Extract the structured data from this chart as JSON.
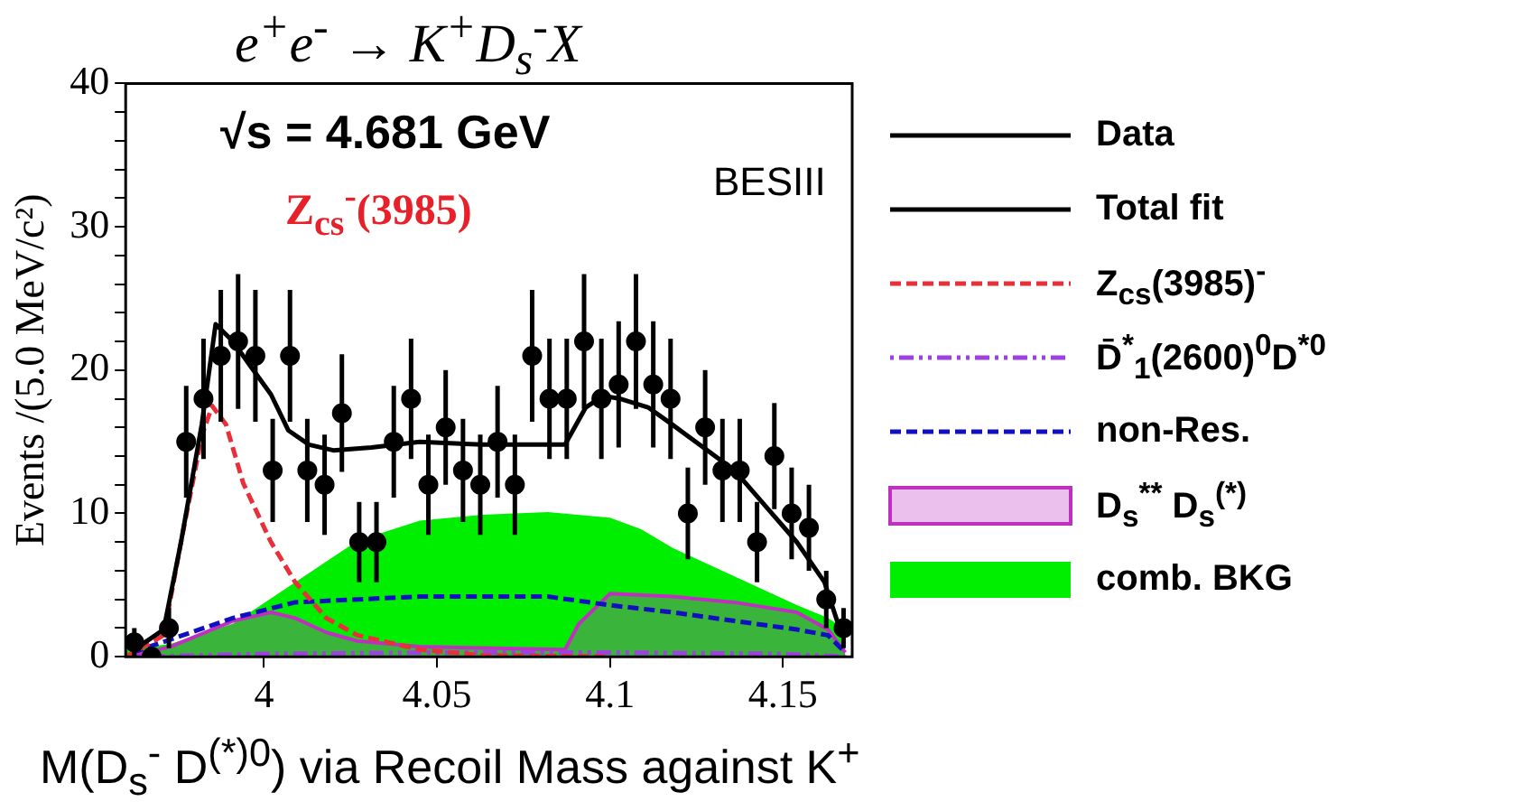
{
  "chart_data": {
    "type": "scatter",
    "title": "e$^{+}$e$^{-}$ → K$^{+}$D$_{s}$$^{-}$X",
    "xlabel": "M(D$_{s}$$^{-}$ D$^{(*)0}$) via Recoil Mass against K$^{+}$",
    "ylabel": "Events /(5.0 MeV/c²)",
    "annotations": [
      "√s = 4.681 GeV",
      "Z$_{cs}$$^{-}$(3985)",
      "BESIII"
    ],
    "xlim": [
      3.96,
      4.17
    ],
    "xticks": [
      4,
      4.05,
      4.1,
      4.15
    ],
    "ylim": [
      0,
      40
    ],
    "yticks": [
      0,
      {
        "value": 2,
        "label": null
      },
      {
        "value": 4,
        "label": null
      },
      {
        "value": 6,
        "label": null
      },
      {
        "value": 8,
        "label": null
      },
      10,
      {
        "value": 12,
        "label": null
      },
      {
        "value": 14,
        "label": null
      },
      {
        "value": 16,
        "label": null
      },
      {
        "value": 18,
        "label": null
      },
      20,
      {
        "value": 22,
        "label": null
      },
      {
        "value": 24,
        "label": null
      },
      {
        "value": 26,
        "label": null
      },
      {
        "value": 28,
        "label": null
      },
      30,
      {
        "value": 32,
        "label": null
      },
      {
        "value": 34,
        "label": null
      },
      {
        "value": 36,
        "label": null
      },
      {
        "value": 38,
        "label": null
      },
      40
    ],
    "grid": false,
    "legend": "right",
    "series": [
      {
        "name": "Data",
        "type": "scatter",
        "marker": "circle",
        "color": "#000000",
        "x": [
          3.9625,
          3.9675,
          3.9725,
          3.9775,
          3.9825,
          3.9875,
          3.9925,
          3.9975,
          4.0025,
          4.0075,
          4.0125,
          4.0175,
          4.0225,
          4.0275,
          4.0325,
          4.0375,
          4.0425,
          4.0475,
          4.0525,
          4.0575,
          4.0625,
          4.0675,
          4.0725,
          4.0775,
          4.0825,
          4.0875,
          4.0925,
          4.0975,
          4.1025,
          4.1075,
          4.1125,
          4.1175,
          4.1225,
          4.1275,
          4.1325,
          4.1375,
          4.1425,
          4.1475,
          4.1525,
          4.1575,
          4.1625,
          4.1675
        ],
        "values": [
          1,
          0,
          2,
          15,
          18,
          21,
          22,
          21,
          13,
          21,
          13,
          12,
          17,
          8,
          8,
          15,
          18,
          12,
          16,
          13,
          12,
          15,
          12,
          21,
          18,
          18,
          22,
          18,
          19,
          22,
          19,
          18,
          10,
          16,
          13,
          13,
          8,
          14,
          10,
          9,
          4,
          2
        ],
        "errors": [
          1,
          null,
          1.4,
          3.9,
          4.2,
          4.6,
          4.7,
          4.6,
          3.6,
          4.6,
          3.6,
          3.5,
          4.1,
          2.8,
          2.8,
          3.9,
          4.2,
          3.5,
          4,
          3.6,
          3.5,
          3.9,
          3.5,
          4.6,
          4.2,
          4.2,
          4.7,
          4.2,
          4.4,
          4.7,
          4.4,
          4.2,
          3.2,
          4,
          3.6,
          3.6,
          2.8,
          3.7,
          3.2,
          3,
          2,
          1.4
        ]
      },
      {
        "name": "Total fit",
        "type": "line",
        "marker": "none",
        "line_style": "solid",
        "color": "#000000",
        "x": [
          3.96,
          3.965,
          3.971,
          3.976,
          3.982,
          3.986,
          3.991,
          3.996,
          4.002,
          4.007,
          4.013,
          4.02,
          4.031,
          4.045,
          4.063,
          4.087,
          4.093,
          4.098,
          4.103,
          4.111,
          4.118,
          4.127,
          4.136,
          4.145,
          4.154,
          4.162,
          4.167
        ],
        "values": [
          1.3,
          0.9,
          1.9,
          8,
          16.2,
          23.2,
          22,
          20.3,
          18.3,
          15.8,
          14.8,
          14.4,
          14.6,
          15,
          14.8,
          14.8,
          17.4,
          18.2,
          18,
          17.4,
          16.2,
          14.6,
          13,
          10.5,
          8,
          5.2,
          1.5
        ]
      },
      {
        "name": "Z$_{cs}$(3985)$^{-}$",
        "type": "line",
        "marker": "none",
        "line_style": "dashed",
        "color": "#e8303a",
        "x": [
          3.96,
          3.971,
          3.976,
          3.982,
          3.985,
          3.989,
          3.994,
          4.002,
          4.009,
          4.018,
          4.027,
          4.045,
          4.063,
          4.1
        ],
        "values": [
          0,
          1.5,
          8,
          15.4,
          17.5,
          16.2,
          12.1,
          8,
          5.2,
          2.7,
          1.5,
          0.5,
          0.1,
          0
        ]
      },
      {
        "name": "D̄$^{*}$$_{1}$(2600)$^{0}$D$^{*0}$",
        "type": "line",
        "marker": "none",
        "line_style": "dotted",
        "color": "#a040e0",
        "x": [
          3.962,
          4,
          4.05,
          4.1,
          4.15,
          4.168
        ],
        "values": [
          0,
          0.2,
          0.3,
          0.3,
          0.2,
          0
        ]
      },
      {
        "name": "non-Res.",
        "type": "line",
        "marker": "none",
        "line_style": "dashed",
        "color": "#1010c0",
        "x": [
          3.962,
          3.991,
          4.009,
          4.045,
          4.082,
          4.1,
          4.118,
          4.136,
          4.154,
          4.163,
          4.168
        ],
        "values": [
          0.3,
          2.7,
          3.8,
          4.2,
          4.2,
          3.6,
          3.1,
          2.5,
          1.9,
          1.5,
          0.3
        ]
      },
      {
        "name": "D$_{s}$$^{**}$ D$_{s}$$^{(*)}$",
        "type": "area",
        "marker": "none",
        "line_style": "solid",
        "color": "#c030c0",
        "x": [
          3.962,
          3.973,
          3.991,
          4.002,
          4.009,
          4.018,
          4.027,
          4.045,
          4.087,
          4.091,
          4.1,
          4.118,
          4.136,
          4.154,
          4.163,
          4.168
        ],
        "values": [
          0.1,
          0.7,
          2.5,
          3.1,
          2.7,
          1.7,
          1.1,
          0.7,
          0.5,
          2.3,
          4.4,
          4.2,
          3.8,
          3.1,
          1.9,
          0.3
        ]
      },
      {
        "name": "comb. BKG",
        "type": "area",
        "marker": "none",
        "color": "#00ee00",
        "x": [
          3.96,
          3.973,
          3.991,
          4.009,
          4.027,
          4.045,
          4.063,
          4.082,
          4.1,
          4.109,
          4.118,
          4.136,
          4.154,
          4.163,
          4.168
        ],
        "values": [
          0.5,
          0.9,
          2.3,
          5.2,
          8.1,
          9.5,
          9.9,
          10.1,
          9.7,
          8.9,
          7.6,
          5.6,
          3.6,
          2.7,
          1.9
        ]
      }
    ]
  }
}
